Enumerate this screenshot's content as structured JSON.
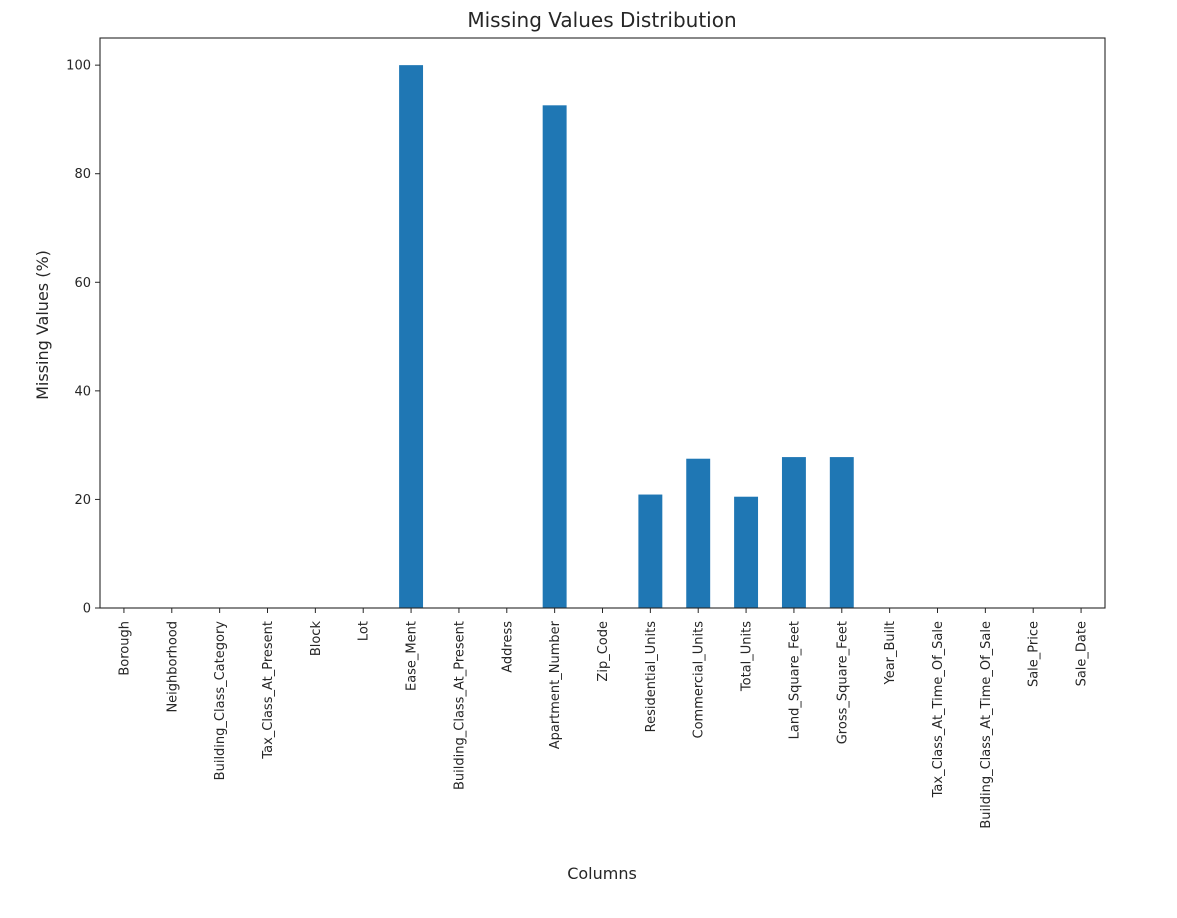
{
  "chart_data": {
    "type": "bar",
    "title": "Missing Values Distribution",
    "xlabel": "Columns",
    "ylabel": "Missing Values (%)",
    "ylim": [
      0,
      105
    ],
    "yticks": [
      0,
      20,
      40,
      60,
      80,
      100
    ],
    "grid": false,
    "legend": null,
    "bar_color": "#1f77b4",
    "categories": [
      "Borough",
      "Neighborhood",
      "Building_Class_Category",
      "Tax_Class_At_Present",
      "Block",
      "Lot",
      "Ease_Ment",
      "Building_Class_At_Present",
      "Address",
      "Apartment_Number",
      "Zip_Code",
      "Residential_Units",
      "Commercial_Units",
      "Total_Units",
      "Land_Square_Feet",
      "Gross_Square_Feet",
      "Year_Built",
      "Tax_Class_At_Time_Of_Sale",
      "Building_Class_At_Time_Of_Sale",
      "Sale_Price",
      "Sale_Date"
    ],
    "values": [
      0,
      0,
      0,
      0,
      0,
      0,
      100.0,
      0,
      0,
      92.6,
      0,
      20.9,
      27.5,
      20.5,
      27.8,
      27.8,
      0,
      0,
      0,
      0,
      0
    ]
  }
}
